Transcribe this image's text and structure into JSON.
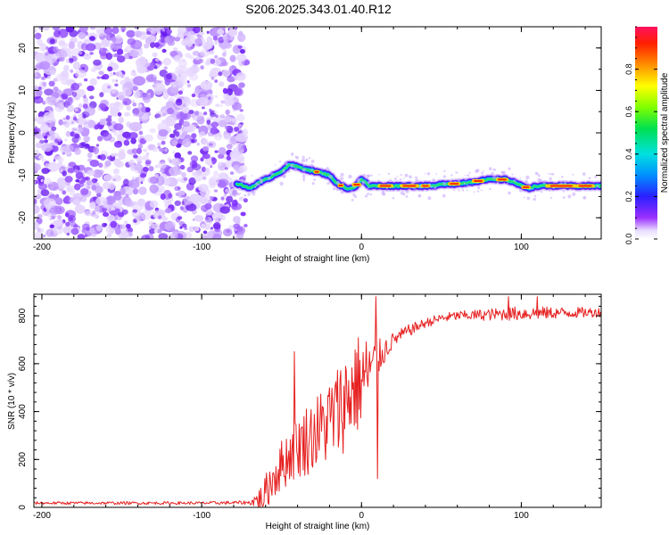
{
  "title": "S206.2025.343.01.40.R12",
  "colors": {
    "snr_line": "#e62020",
    "axis": "#000000",
    "background": "#ffffff"
  },
  "chart_data": [
    {
      "type": "heatmap",
      "name": "spectrogram",
      "xlabel": "Height of straight line (km)",
      "ylabel": "Frequency (Hz)",
      "xlim": [
        -205,
        150
      ],
      "ylim": [
        -25,
        25
      ],
      "x_ticks": [
        -200,
        -100,
        0,
        100
      ],
      "x_tick_labels": [
        "-200",
        "-100",
        "0",
        "100"
      ],
      "y_ticks": [
        20,
        10,
        0,
        -10,
        -20
      ],
      "y_tick_labels": [
        "20",
        "10",
        "0",
        "-10",
        "-20"
      ],
      "noise_region_x": [
        -205,
        -78
      ],
      "trace": {
        "x": [
          -78,
          -70,
          -60,
          -50,
          -45,
          -40,
          -35,
          -30,
          -25,
          -20,
          -15,
          -10,
          -5,
          0,
          5,
          10,
          20,
          30,
          40,
          47,
          50,
          55,
          60,
          70,
          80,
          90,
          95,
          100,
          105,
          110,
          120,
          130,
          140,
          150
        ],
        "freq": [
          -12,
          -13,
          -11,
          -9,
          -7.5,
          -8,
          -8.5,
          -9,
          -9.5,
          -10,
          -12,
          -13,
          -13,
          -11,
          -12.5,
          -12.5,
          -12.5,
          -12.5,
          -12.5,
          -12.5,
          -12,
          -12,
          -12,
          -11.5,
          -11,
          -11,
          -11.5,
          -12.5,
          -13,
          -12.5,
          -12.5,
          -12.5,
          -12.5,
          -12.5
        ]
      },
      "colorbar": {
        "label": "Normalized spectral amplitude",
        "range": [
          0,
          1
        ],
        "ticks": [
          0.0,
          0.2,
          0.4,
          0.6,
          0.8
        ],
        "tick_labels": [
          "0.0",
          "0.2",
          "0.4",
          "0.6",
          "0.8"
        ]
      }
    },
    {
      "type": "line",
      "name": "snr",
      "xlabel": "Height of straight line (km)",
      "ylabel": "SNR (10 * v/v)",
      "xlim": [
        -205,
        150
      ],
      "ylim": [
        0,
        890
      ],
      "x_ticks": [
        -200,
        -100,
        0,
        100
      ],
      "x_tick_labels": [
        "-200",
        "-100",
        "0",
        "100"
      ],
      "y_ticks": [
        0,
        200,
        400,
        600,
        800
      ],
      "y_tick_labels": [
        "0",
        "200",
        "400",
        "600",
        "800"
      ],
      "series": [
        {
          "name": "SNR",
          "envelope_x": [
            -205,
            -150,
            -100,
            -70,
            -62,
            -55,
            -45,
            -35,
            -25,
            -15,
            -5,
            0,
            10,
            20,
            30,
            40,
            50,
            60,
            80,
            100,
            120,
            150
          ],
          "envelope_y": [
            18,
            18,
            18,
            20,
            40,
            130,
            220,
            280,
            330,
            400,
            500,
            530,
            620,
            700,
            740,
            770,
            790,
            800,
            805,
            810,
            812,
            815
          ],
          "noise_amplitude": [
            6,
            6,
            6,
            8,
            60,
            100,
            120,
            150,
            170,
            200,
            230,
            200,
            80,
            30,
            25,
            20,
            20,
            20,
            25,
            30,
            25,
            20
          ],
          "spikes": [
            {
              "x": -42,
              "y": 650
            },
            {
              "x": 9,
              "y": 880
            },
            {
              "x": 10,
              "y": 120
            },
            {
              "x": 92,
              "y": 880
            },
            {
              "x": 110,
              "y": 880
            }
          ]
        }
      ]
    }
  ]
}
